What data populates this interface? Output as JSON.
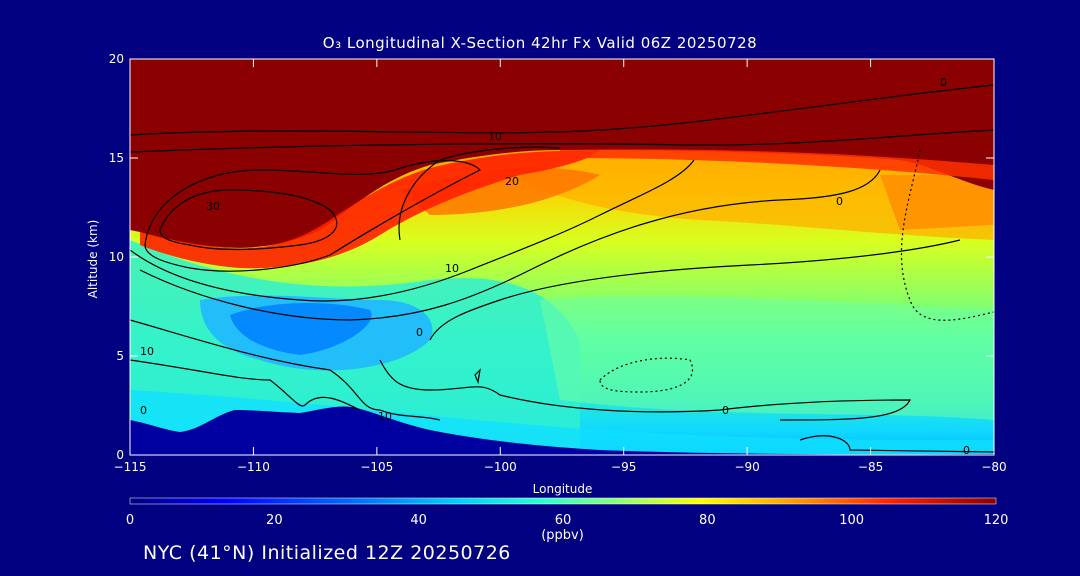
{
  "chart_data": {
    "type": "heatmap",
    "title": "O₃ Longitudinal X-Section 42hr  Fx Valid 06Z 20250728",
    "xlabel": "Longitude",
    "ylabel": "Altitude (km)",
    "xlim": [
      -115,
      -80
    ],
    "ylim": [
      0,
      20
    ],
    "x_ticks": [
      -115,
      -110,
      -105,
      -100,
      -95,
      -90,
      -85,
      -80
    ],
    "x_tick_labels": [
      "−115",
      "−110",
      "−105",
      "−100",
      "−95",
      "−90",
      "−85",
      "−80"
    ],
    "y_ticks": [
      0,
      5,
      10,
      15,
      20
    ],
    "colorbar": {
      "label": "(ppbv)",
      "range": [
        0,
        120
      ],
      "ticks": [
        0,
        20,
        40,
        60,
        80,
        100,
        120
      ],
      "colors": [
        "#00007f",
        "#0000ff",
        "#0080ff",
        "#00e0ff",
        "#40ffc0",
        "#c0ff40",
        "#ffff00",
        "#ff9000",
        "#ff2000",
        "#8b0000"
      ]
    },
    "contour_labels": [
      "0",
      "10",
      "20",
      "30"
    ],
    "background_color": "#000080"
  },
  "footer": "NYC (41°N) Initialized 12Z 20250726"
}
